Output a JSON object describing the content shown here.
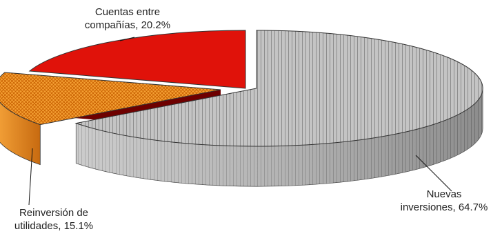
{
  "chart_data": {
    "type": "pie",
    "style": "3d-exploded",
    "slices": [
      {
        "label_lines": [
          "Nuevas",
          "inversiones, 64.7%"
        ],
        "category": "Nuevas inversiones",
        "value": 64.7,
        "color": "#b8b8b8",
        "pattern": "vertical-stripes"
      },
      {
        "label_lines": [
          "Reinversión de",
          "utilidades, 15.1%"
        ],
        "category": "Reinversión de utilidades",
        "value": 15.1,
        "color": "#f28c1e",
        "pattern": "crosshatch"
      },
      {
        "label_lines": [
          "Cuentas entre",
          "compañías, 20.2%"
        ],
        "category": "Cuentas entre compañías",
        "value": 20.2,
        "color": "#e0120a",
        "pattern": "solid"
      }
    ],
    "legend": "none"
  }
}
